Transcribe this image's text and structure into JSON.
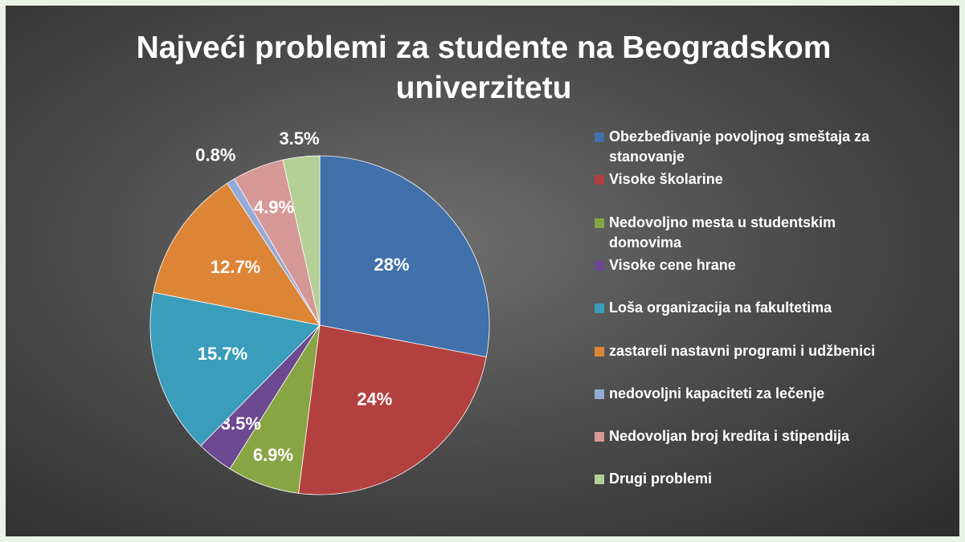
{
  "chart_data": {
    "type": "pie",
    "title": "Najveći problemi za studente na Beogradskom univerzitetu",
    "categories": [
      "Obezbeđivanje povoljnog smeštaja za stanovanje",
      "Visoke školarine",
      "Nedovoljno mesta u studentskim domovima",
      "Visoke cene hrane",
      "Loša organizacija na fakultetima",
      "zastareli nastavni programi i udžbenici",
      "nedovoljni kapaciteti za lečenje",
      "Nedovoljan broj kredita i stipendija",
      "Drugi problemi"
    ],
    "values": [
      28,
      24,
      6.9,
      3.5,
      15.7,
      12.7,
      0.8,
      4.9,
      3.5
    ],
    "value_labels": [
      "28%",
      "24%",
      "6.9%",
      "3.5%",
      "15.7%",
      "12.7%",
      "0.8%",
      "4.9%",
      "3.5%"
    ],
    "colors": [
      "#4170aa",
      "#b2403e",
      "#88a544",
      "#6b4890",
      "#3a9dbb",
      "#dd8537",
      "#93abd6",
      "#d69896",
      "#b5d096"
    ],
    "legend": "right"
  }
}
